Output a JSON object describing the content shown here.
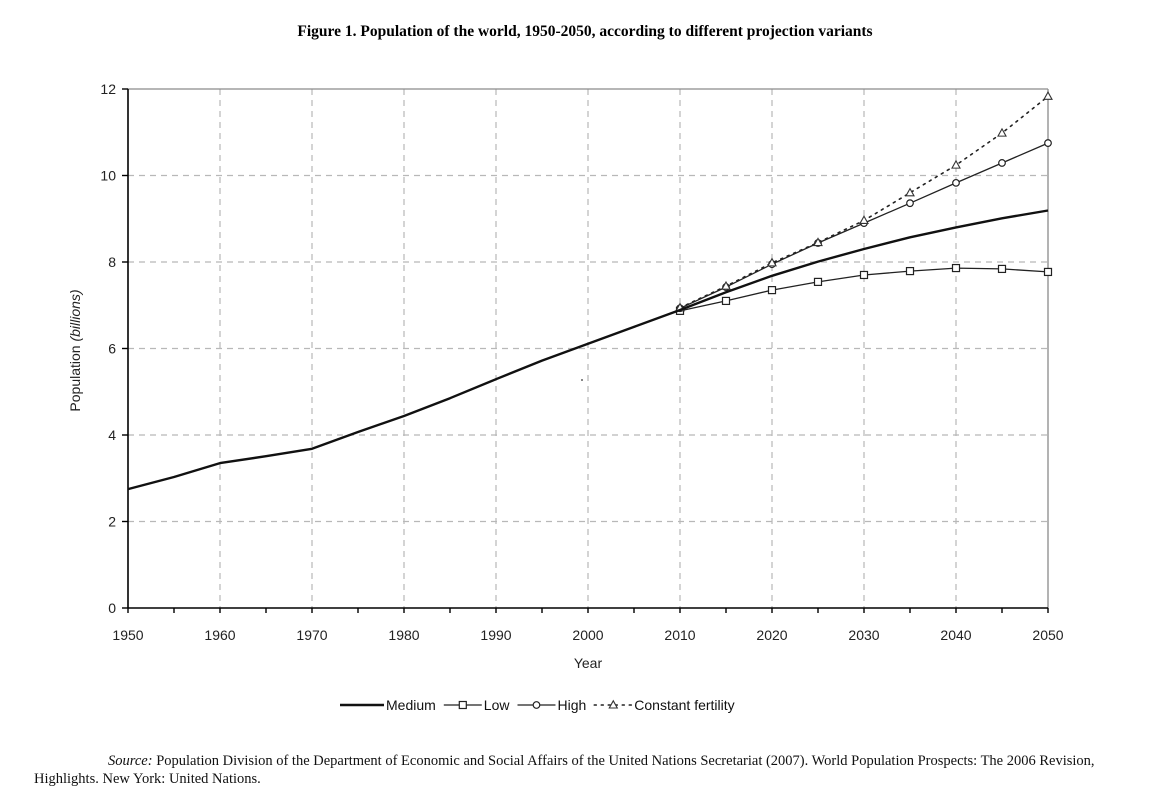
{
  "chart_data": {
    "type": "line",
    "title": "Figure 1. Population of the world, 1950-2050, according to different projection variants",
    "xlabel": "Year",
    "ylabel_prefix": "Population ",
    "ylabel_italic": "(billions)",
    "xlim": [
      1950,
      2050
    ],
    "ylim": [
      0,
      12
    ],
    "xticks": [
      1950,
      1960,
      1970,
      1980,
      1990,
      2000,
      2010,
      2020,
      2030,
      2040,
      2050
    ],
    "xtick_labels": [
      "1950",
      "1960",
      "1970",
      "1980",
      "1990",
      "2000",
      "2010",
      "2020",
      "2030",
      "2040",
      "2050"
    ],
    "x_minor_step": 5,
    "yticks": [
      0,
      2,
      4,
      6,
      8,
      10,
      12
    ],
    "ytick_labels": [
      "0",
      "2",
      "4",
      "6",
      "8",
      "10",
      "12"
    ],
    "grid": true,
    "legend_position": "bottom-center",
    "series": [
      {
        "name": "Medium",
        "style": "solid",
        "marker": "none",
        "x": [
          1950,
          1955,
          1960,
          1965,
          1970,
          1975,
          1980,
          1985,
          1990,
          1995,
          2000,
          2005,
          2010,
          2015,
          2020,
          2025,
          2030,
          2035,
          2040,
          2045,
          2050
        ],
        "values": [
          2.75,
          3.03,
          3.35,
          3.51,
          3.68,
          4.07,
          4.44,
          4.85,
          5.29,
          5.72,
          6.11,
          6.5,
          6.89,
          7.3,
          7.68,
          8.01,
          8.3,
          8.57,
          8.8,
          9.01,
          9.19
        ]
      },
      {
        "name": "Low",
        "style": "solid",
        "marker": "square",
        "x": [
          2010,
          2015,
          2020,
          2025,
          2030,
          2035,
          2040,
          2045,
          2050
        ],
        "values": [
          6.87,
          7.1,
          7.35,
          7.54,
          7.7,
          7.79,
          7.86,
          7.84,
          7.77
        ]
      },
      {
        "name": "High",
        "style": "solid",
        "marker": "circle",
        "x": [
          2010,
          2015,
          2020,
          2025,
          2030,
          2035,
          2040,
          2045,
          2050
        ],
        "values": [
          6.93,
          7.42,
          7.95,
          8.44,
          8.9,
          9.36,
          9.83,
          10.29,
          10.75
        ]
      },
      {
        "name": "Constant fertility",
        "style": "dotted",
        "marker": "triangle",
        "x": [
          2010,
          2015,
          2020,
          2025,
          2030,
          2035,
          2040,
          2045,
          2050
        ],
        "values": [
          6.94,
          7.44,
          7.98,
          8.45,
          8.96,
          9.6,
          10.24,
          10.98,
          11.83
        ]
      }
    ]
  },
  "source": {
    "label": "Source:",
    "text": " Population Division of the Department of Economic and Social Affairs of the United Nations Secretariat (2007). World Population Prospects: The 2006 Revision, Highlights. New York: United Nations."
  }
}
